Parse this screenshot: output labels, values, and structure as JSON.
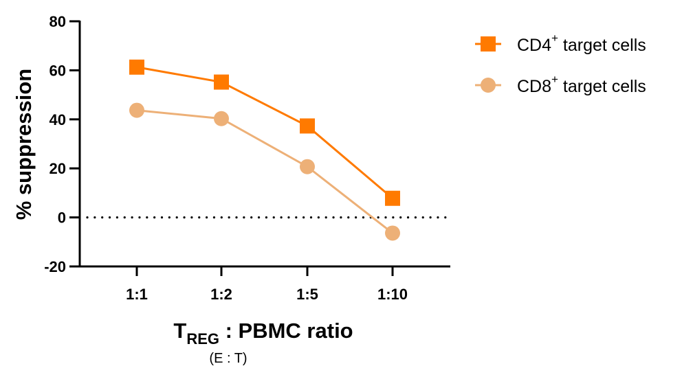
{
  "chart_data": {
    "type": "line",
    "title": "",
    "categories": [
      "1:1",
      "1:2",
      "1:5",
      "1:10"
    ],
    "series": [
      {
        "name": "CD4+ target cells",
        "label_main": "CD4",
        "label_sup": "+",
        "label_rest": " target cells",
        "marker": "square",
        "color": "#FF7A00",
        "values": [
          61.3,
          55.2,
          37.3,
          7.8
        ]
      },
      {
        "name": "CD8+ target cells",
        "label_main": "CD8",
        "label_sup": "+",
        "label_rest": " target cells",
        "marker": "circle",
        "color": "#EDB077",
        "values": [
          43.7,
          40.3,
          20.7,
          -6.4
        ]
      }
    ],
    "xlabel": "TREG : PBMC ratio",
    "xlabel_main": "T",
    "xlabel_sub": "REG",
    "xlabel_rest": " : PBMC ratio",
    "xlabel_note": "(E : T)",
    "ylabel": "% suppression",
    "ylim": [
      -20,
      80
    ],
    "yticks": [
      -20,
      0,
      20,
      40,
      60,
      80
    ],
    "reference_line": {
      "y": 0,
      "style": "dotted"
    },
    "grid": false,
    "legend_position": "top-right"
  }
}
